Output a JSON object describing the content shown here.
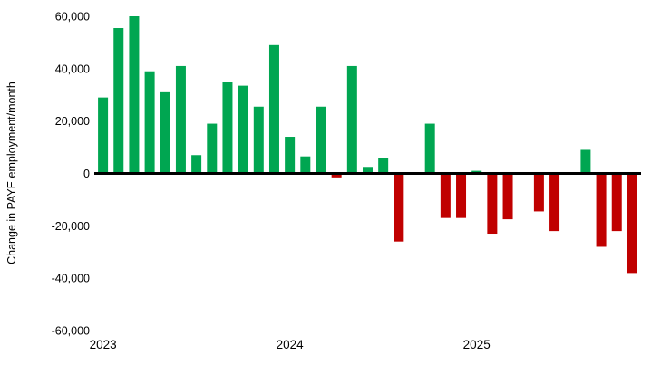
{
  "chart_data": {
    "type": "bar",
    "title": "",
    "ylabel": "Change in PAYE employment/month",
    "xlabel": "",
    "ylim": [
      -60000,
      60000
    ],
    "grid": "off",
    "legend": "none",
    "yticks": [
      60000,
      40000,
      20000,
      0,
      -20000,
      -40000,
      -60000
    ],
    "ytick_labels": [
      "60,000",
      "40,000",
      "20,000",
      "0",
      "-20,000",
      "-40,000",
      "-60,000"
    ],
    "x_year_labels": [
      "2023",
      "2024",
      "2025"
    ],
    "year_tick_indices": [
      0,
      12,
      24
    ],
    "positive_color": "#00A651",
    "negative_color": "#C00000",
    "axis_color": "#000000",
    "x": [
      "Jan 2023",
      "Feb 2023",
      "Mar 2023",
      "Apr 2023",
      "May 2023",
      "Jun 2023",
      "Jul 2023",
      "Aug 2023",
      "Sep 2023",
      "Oct 2023",
      "Nov 2023",
      "Dec 2023",
      "Jan 2024",
      "Feb 2024",
      "Mar 2024",
      "Apr 2024",
      "May 2024",
      "Jun 2024",
      "Jul 2024",
      "Aug 2024",
      "Sep 2024",
      "Oct 2024",
      "Nov 2024",
      "Dec 2024",
      "Jan 2025",
      "Feb 2025",
      "Mar 2025",
      "Apr 2025",
      "May 2025",
      "Jun 2025",
      "Jul 2025",
      "Aug 2025",
      "Sep 2025",
      "Oct 2025",
      "Nov 2025"
    ],
    "values": [
      29000,
      55500,
      60000,
      39000,
      31000,
      41000,
      7000,
      19000,
      35000,
      33500,
      25500,
      49000,
      14000,
      6500,
      25500,
      -1500,
      41000,
      2500,
      6000,
      -26000,
      0,
      19000,
      -17000,
      -17000,
      1000,
      -23000,
      -17500,
      0,
      -14500,
      -22000,
      0,
      9000,
      -28000,
      -22000,
      -38000
    ]
  }
}
